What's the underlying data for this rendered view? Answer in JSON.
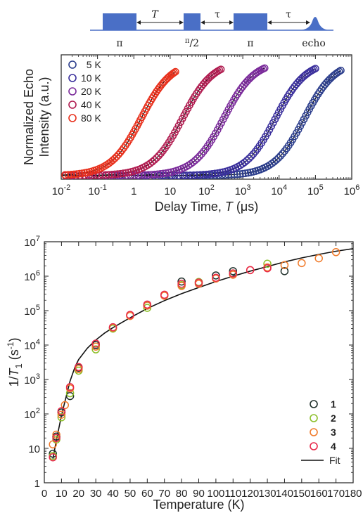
{
  "pulse_sequence": {
    "labels": [
      "π",
      "π/2",
      "π",
      "echo"
    ],
    "delays": [
      "T",
      "τ",
      "τ"
    ],
    "color": "#4a6fc6"
  },
  "chart_data": [
    {
      "type": "line",
      "title": "",
      "xlabel_text": "Delay Time, ",
      "xlabel_var": "T",
      "xlabel_unit": " (μs)",
      "ylabel_lines": [
        "Normalized Echo",
        "Intensity (a.u.)"
      ],
      "xscale": "log",
      "xlim": [
        0.01,
        1000000
      ],
      "xticks": [
        {
          "v": 0.01,
          "base": "10",
          "exp": "-2"
        },
        {
          "v": 0.1,
          "base": "10",
          "exp": "-1"
        },
        {
          "v": 1,
          "base": "1",
          "exp": ""
        },
        {
          "v": 10,
          "base": "10",
          "exp": ""
        },
        {
          "v": 100,
          "base": "10",
          "exp": "2"
        },
        {
          "v": 1000,
          "base": "10",
          "exp": "3"
        },
        {
          "v": 10000,
          "base": "10",
          "exp": "4"
        },
        {
          "v": 100000,
          "base": "10",
          "exp": "5"
        },
        {
          "v": 1000000,
          "base": "10",
          "exp": "6"
        }
      ],
      "ylim": [
        0,
        1.05
      ],
      "legend_position": "top-left",
      "series": [
        {
          "name": "5 K",
          "color": "#2c3e8c",
          "x_min": 1.9,
          "x_max": 500000,
          "x_mid": 50000
        },
        {
          "name": "10 K",
          "color": "#3a2f9c",
          "x_min": 0.4,
          "x_max": 100000,
          "x_mid": 8000
        },
        {
          "name": "20 K",
          "color": "#7a2a9a",
          "x_min": 0.02,
          "x_max": 4000,
          "x_mid": 300
        },
        {
          "name": "40 K",
          "color": "#b01c50",
          "x_min": 0.001,
          "x_max": 250,
          "x_mid": 22
        },
        {
          "name": "80 K",
          "color": "#e8301c",
          "x_min": 0.00045,
          "x_max": 14,
          "x_mid": 1.6
        }
      ]
    },
    {
      "type": "scatter",
      "title": "",
      "xlabel": "Temperature (K)",
      "ylabel_base": "1/",
      "ylabel_var": "T",
      "ylabel_sub": "1",
      "ylabel_unit_pre": " (s",
      "ylabel_unit_sup": "-1",
      "ylabel_unit_post": ")",
      "xlim": [
        0,
        180
      ],
      "xticks": [
        0,
        10,
        20,
        30,
        40,
        50,
        60,
        70,
        80,
        90,
        100,
        110,
        120,
        130,
        140,
        150,
        160,
        170,
        180
      ],
      "yscale": "log",
      "ylim": [
        1,
        10000000
      ],
      "yticks": [
        {
          "v": 1,
          "base": "1",
          "exp": ""
        },
        {
          "v": 10,
          "base": "10",
          "exp": ""
        },
        {
          "v": 100,
          "base": "10",
          "exp": "2"
        },
        {
          "v": 1000,
          "base": "10",
          "exp": "3"
        },
        {
          "v": 10000,
          "base": "10",
          "exp": "4"
        },
        {
          "v": 100000,
          "base": "10",
          "exp": "5"
        },
        {
          "v": 1000000,
          "base": "10",
          "exp": "6"
        },
        {
          "v": 10000000,
          "base": "10",
          "exp": "7"
        }
      ],
      "legend_position": "bottom-right",
      "series": [
        {
          "name": "1",
          "color": "#1f2f2a",
          "points": [
            [
              5,
              7
            ],
            [
              7,
              22
            ],
            [
              10,
              110
            ],
            [
              15,
              330
            ],
            [
              20,
              2200
            ],
            [
              30,
              10000
            ],
            [
              40,
              32000
            ],
            [
              60,
              140000
            ],
            [
              80,
              700000
            ],
            [
              100,
              1050000
            ],
            [
              110,
              1400000
            ],
            [
              140,
              1400000
            ]
          ]
        },
        {
          "name": "2",
          "color": "#8cbf2a",
          "points": [
            [
              5,
              6
            ],
            [
              7,
              18
            ],
            [
              10,
              80
            ],
            [
              15,
              400
            ],
            [
              20,
              1800
            ],
            [
              30,
              7500
            ],
            [
              40,
              30000
            ],
            [
              60,
              120000
            ],
            [
              80,
              550000
            ],
            [
              90,
              680000
            ],
            [
              110,
              1200000
            ],
            [
              130,
              2300000
            ]
          ]
        },
        {
          "name": "3",
          "color": "#f07a2a",
          "points": [
            [
              5,
              13
            ],
            [
              7,
              25
            ],
            [
              10,
              95
            ],
            [
              12,
              180
            ],
            [
              15,
              550
            ],
            [
              20,
              2000
            ],
            [
              30,
              9000
            ],
            [
              40,
              32000
            ],
            [
              50,
              70000
            ],
            [
              60,
              140000
            ],
            [
              70,
              270000
            ],
            [
              80,
              520000
            ],
            [
              90,
              600000
            ],
            [
              100,
              850000
            ],
            [
              110,
              1100000
            ],
            [
              120,
              1500000
            ],
            [
              130,
              1800000
            ],
            [
              140,
              2100000
            ],
            [
              150,
              2400000
            ],
            [
              160,
              3300000
            ],
            [
              170,
              5000000
            ]
          ]
        },
        {
          "name": "4",
          "color": "#e8284a",
          "points": [
            [
              5,
              5.5
            ],
            [
              7,
              20
            ],
            [
              10,
              120
            ],
            [
              15,
              600
            ],
            [
              20,
              2300
            ],
            [
              30,
              11000
            ],
            [
              40,
              33000
            ],
            [
              50,
              75000
            ],
            [
              60,
              150000
            ],
            [
              70,
              290000
            ],
            [
              80,
              600000
            ],
            [
              90,
              650000
            ],
            [
              100,
              900000
            ],
            [
              110,
              1200000
            ],
            [
              120,
              1500000
            ],
            [
              130,
              1700000
            ]
          ]
        }
      ],
      "fit": {
        "name": "Fit",
        "color": "#111111",
        "points": [
          [
            5,
            5
          ],
          [
            7,
            17
          ],
          [
            10,
            90
          ],
          [
            12,
            230
          ],
          [
            15,
            900
          ],
          [
            18,
            2400
          ],
          [
            20,
            3800
          ],
          [
            25,
            8000
          ],
          [
            30,
            14000
          ],
          [
            35,
            22000
          ],
          [
            40,
            32000
          ],
          [
            50,
            62000
          ],
          [
            60,
            115000
          ],
          [
            70,
            195000
          ],
          [
            80,
            310000
          ],
          [
            90,
            470000
          ],
          [
            100,
            700000
          ],
          [
            110,
            1000000
          ],
          [
            120,
            1400000
          ],
          [
            130,
            1900000
          ],
          [
            140,
            2600000
          ],
          [
            150,
            3400000
          ],
          [
            160,
            4300000
          ],
          [
            170,
            5300000
          ],
          [
            180,
            6300000
          ]
        ]
      }
    }
  ]
}
